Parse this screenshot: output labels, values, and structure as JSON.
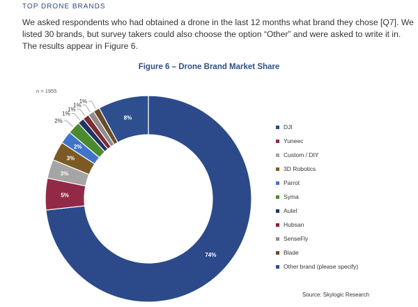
{
  "section": {
    "heading": "TOP DRONE BRANDS"
  },
  "intro": {
    "lines": [
      "We asked respondents who had obtained a drone in the last 12 months what brand they chose [Q7]. We",
      "listed 30 brands, but survey takers could also choose the option “Other” and were asked to write it in.",
      "The results appear in Figure 6."
    ]
  },
  "figure": {
    "title": "Figure 6 – Drone Brand Market Share",
    "sample": "n = 1955"
  },
  "source": "Source: Skylogic Research",
  "chart_data": {
    "type": "pie",
    "donut": true,
    "title": "Figure 6 – Drone Brand Market Share",
    "categories": [
      "DJI",
      "Yuneec",
      "Custom / DIY",
      "3D Robotics",
      "Parrot",
      "Syma",
      "Autel",
      "Hubsan",
      "SenseFly",
      "Blade",
      "Other brand (please specify)"
    ],
    "values": [
      74,
      5,
      3,
      3,
      2,
      2,
      1,
      1,
      1,
      1,
      8
    ],
    "labels": [
      "74%",
      "5%",
      "3%",
      "3%",
      "2%",
      "2%",
      "1%",
      "1%",
      "1%",
      "1%",
      "8%"
    ],
    "colors": [
      "#2c4a8a",
      "#922a47",
      "#a5a5a5",
      "#7b5a25",
      "#3f74c9",
      "#4b8a2f",
      "#223366",
      "#7e2a33",
      "#8d8d8d",
      "#6b4b28",
      "#2e4f8e"
    ],
    "legend_position": "right"
  }
}
